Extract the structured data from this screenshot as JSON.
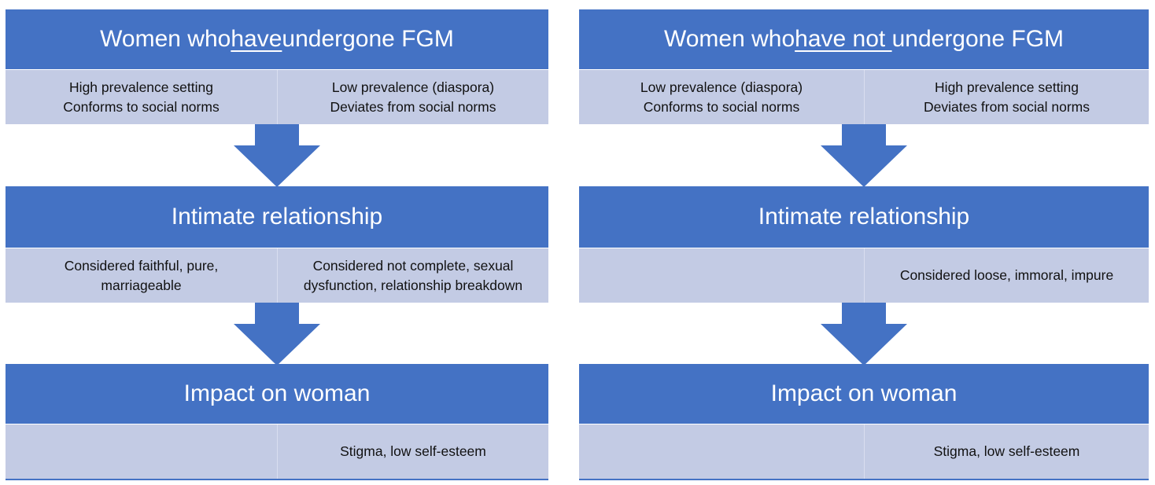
{
  "colors": {
    "header_fill": "#4472c4",
    "cell_fill": "#c3cbe4",
    "arrow_fill": "#4472c4",
    "header_text": "#ffffff"
  },
  "left": {
    "title": {
      "before": "Women who ",
      "underlined": "have",
      "after": " undergone FGM"
    },
    "row1": {
      "col1": [
        "High prevalence setting",
        "Conforms to social norms"
      ],
      "col2": [
        "Low prevalence (diaspora)",
        "Deviates from social norms"
      ]
    },
    "section2_title": "Intimate relationship",
    "row2": {
      "col1": [
        "Considered faithful, pure,",
        "marriageable"
      ],
      "col2": [
        "Considered not complete, sexual",
        "dysfunction, relationship breakdown"
      ]
    },
    "section3_title": "Impact on woman",
    "row3": {
      "col1": [],
      "col2": [
        "Stigma, low self-esteem"
      ]
    }
  },
  "right": {
    "title": {
      "before": "Women who ",
      "underlined": "have not ",
      "after": "undergone FGM"
    },
    "row1": {
      "col1": [
        "Low prevalence (diaspora)",
        "Conforms to social norms"
      ],
      "col2": [
        "High prevalence setting",
        "Deviates from social norms"
      ]
    },
    "section2_title": "Intimate relationship",
    "row2": {
      "col1": [],
      "col2": [
        "Considered loose, immoral, impure"
      ]
    },
    "section3_title": "Impact on woman",
    "row3": {
      "col1": [],
      "col2": [
        "Stigma, low self-esteem"
      ]
    }
  }
}
